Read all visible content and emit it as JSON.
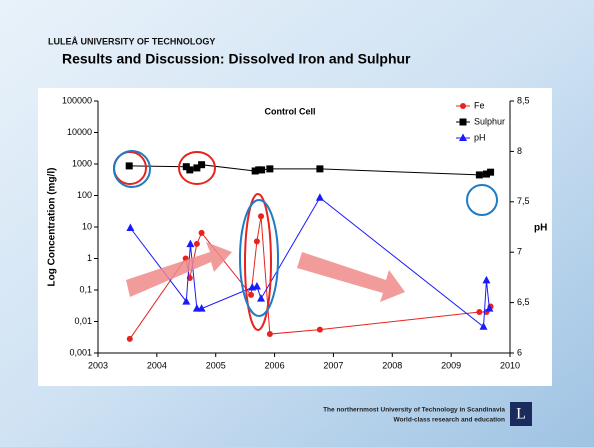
{
  "header": {
    "institution": "LULEÅ UNIVERSITY OF TECHNOLOGY",
    "title": "Results and Discussion: Dissolved Iron and Sulphur"
  },
  "footer": {
    "line1": "The northernmost University of Technology in Scandinavia",
    "line2": "World-class research and education",
    "logo": "L"
  },
  "chart_data": {
    "type": "scatter",
    "title": "Control Cell",
    "y_label": "Log Concentration (mg/l)",
    "y2_label": "pH",
    "xlim": [
      2003,
      2010
    ],
    "xticks": [
      2003,
      2004,
      2005,
      2006,
      2007,
      2008,
      2009,
      2010
    ],
    "ylim": [
      0.001,
      100000
    ],
    "ylog": true,
    "yticks": [
      {
        "value": 0.001,
        "label": "0,001"
      },
      {
        "value": 0.01,
        "label": "0,01"
      },
      {
        "value": 0.1,
        "label": "0,1"
      },
      1,
      10,
      100,
      1000,
      10000,
      100000
    ],
    "y2lim": [
      6,
      8.5
    ],
    "y2ticks": [
      6,
      {
        "value": 6.5,
        "label": "6,5"
      },
      7,
      {
        "value": 7.5,
        "label": "7,5"
      },
      8,
      {
        "value": 8.5,
        "label": "8,5"
      }
    ],
    "legend": "top-right",
    "series": [
      {
        "name": "Fe",
        "color": "#e8231e",
        "marker": "circle",
        "x": [
          2003.54,
          2004.49,
          2004.56,
          2004.68,
          2004.76,
          2005.6,
          2005.7,
          2005.77,
          2005.92,
          2006.77,
          2009.48,
          2009.6,
          2009.67
        ],
        "values": [
          0.0028,
          1,
          0.24,
          2.9,
          6.5,
          0.07,
          3.5,
          22,
          0.004,
          0.0055,
          0.02,
          0.02,
          0.03
        ]
      },
      {
        "name": "Sulphur",
        "color": "#000000",
        "marker": "square",
        "x": [
          2003.53,
          2004.5,
          2004.56,
          2004.68,
          2004.76,
          2005.67,
          2005.73,
          2005.78,
          2005.92,
          2006.77,
          2009.48,
          2009.6,
          2009.67
        ],
        "values": [
          870,
          820,
          650,
          750,
          950,
          600,
          650,
          650,
          700,
          700,
          450,
          480,
          550
        ]
      },
      {
        "name": "pH",
        "color": "#1a1aff",
        "marker": "triangle",
        "axis": "y2",
        "x": [
          2003.55,
          2004.5,
          2004.57,
          2004.68,
          2004.76,
          2005.62,
          2005.7,
          2005.77,
          2006.77,
          2009.55,
          2009.6,
          2009.65
        ],
        "values": [
          7.24,
          6.51,
          7.08,
          6.44,
          6.44,
          6.65,
          6.66,
          6.54,
          7.54,
          6.26,
          6.72,
          6.44
        ]
      }
    ]
  }
}
